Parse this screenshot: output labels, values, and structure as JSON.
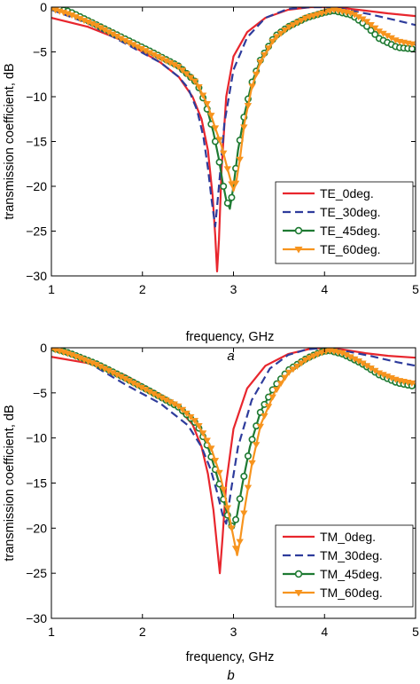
{
  "chart_data": [
    {
      "type": "line",
      "panel_label": "a",
      "xlabel": "frequency, GHz",
      "ylabel": "transmission coefficient, dB",
      "xlim": [
        1,
        5
      ],
      "ylim": [
        -30,
        0
      ],
      "xticks": [
        1,
        2,
        3,
        4,
        5
      ],
      "yticks": [
        0,
        -5,
        -10,
        -15,
        -20,
        -25,
        -30
      ],
      "grid": false,
      "legend_position": "bottom-right",
      "series": [
        {
          "name": "TE_0deg.",
          "color": "#e8262d",
          "style": "solid",
          "marker": "none",
          "x": [
            1,
            1.4,
            1.8,
            2.2,
            2.4,
            2.55,
            2.65,
            2.72,
            2.77,
            2.8,
            2.82,
            2.84,
            2.87,
            2.92,
            3.0,
            3.15,
            3.35,
            3.6,
            3.85,
            4.0,
            4.2,
            4.45,
            4.7,
            5.0
          ],
          "y": [
            -1.2,
            -2.2,
            -3.8,
            -6.2,
            -7.8,
            -10,
            -12.5,
            -16,
            -21,
            -25.5,
            -29.5,
            -26,
            -18,
            -10,
            -5.5,
            -2.8,
            -1.2,
            -0.3,
            0,
            0,
            -0.1,
            -0.4,
            -0.7,
            -1.0
          ]
        },
        {
          "name": "TE_30deg.",
          "color": "#2e3c9c",
          "style": "dashed",
          "marker": "none",
          "x": [
            1,
            1.4,
            1.8,
            2.2,
            2.4,
            2.5,
            2.6,
            2.67,
            2.72,
            2.76,
            2.8,
            2.84,
            2.9,
            3.0,
            3.15,
            3.35,
            3.6,
            3.85,
            4.0,
            4.2,
            4.5,
            4.8,
            5.0
          ],
          "y": [
            -0.3,
            -1.8,
            -4.0,
            -6.2,
            -7.8,
            -9.0,
            -11.5,
            -14.5,
            -18,
            -21.5,
            -24.5,
            -20,
            -13,
            -7,
            -3.4,
            -1.2,
            -0.2,
            0,
            0,
            -0.2,
            -0.8,
            -1.5,
            -2.0
          ]
        },
        {
          "name": "TE_45deg.",
          "color": "#1e7a32",
          "style": "solid",
          "marker": "circle",
          "x": [
            1,
            1.2,
            1.5,
            1.8,
            2.1,
            2.4,
            2.6,
            2.7,
            2.78,
            2.84,
            2.88,
            2.92,
            2.96,
            3.0,
            3.05,
            3.12,
            3.2,
            3.3,
            3.45,
            3.6,
            3.8,
            4.0,
            4.1,
            4.3,
            4.45,
            4.6,
            4.8,
            5.0
          ],
          "y": [
            0,
            -0.5,
            -2.0,
            -3.5,
            -5.0,
            -6.6,
            -8.5,
            -11,
            -14,
            -17,
            -19.5,
            -21.5,
            -22.5,
            -20,
            -16,
            -12,
            -8.5,
            -5.8,
            -3.3,
            -2.2,
            -1.2,
            -0.6,
            -0.4,
            -0.9,
            -2.0,
            -3.5,
            -4.5,
            -4.7
          ]
        },
        {
          "name": "TE_60deg.",
          "color": "#f7941e",
          "style": "solid",
          "marker": "triangle-down",
          "x": [
            1,
            1.2,
            1.5,
            1.8,
            2.1,
            2.4,
            2.6,
            2.72,
            2.8,
            2.87,
            2.92,
            2.96,
            3.0,
            3.03,
            3.07,
            3.12,
            3.2,
            3.3,
            3.45,
            3.6,
            3.8,
            4.0,
            4.1,
            4.3,
            4.45,
            4.6,
            4.8,
            5.0
          ],
          "y": [
            -0.2,
            -0.8,
            -2.1,
            -3.7,
            -5.2,
            -6.7,
            -8.5,
            -11,
            -13.5,
            -15.5,
            -17.5,
            -19,
            -20.5,
            -19.5,
            -17,
            -13,
            -9,
            -6,
            -3.5,
            -2.3,
            -1.2,
            -0.6,
            -0.3,
            -0.7,
            -1.5,
            -2.7,
            -3.8,
            -4.2
          ]
        }
      ]
    },
    {
      "type": "line",
      "panel_label": "b",
      "xlabel": "frequency, GHz",
      "ylabel": "transmission coefficient, dB",
      "xlim": [
        1,
        5
      ],
      "ylim": [
        -30,
        0
      ],
      "xticks": [
        1,
        2,
        3,
        4,
        5
      ],
      "yticks": [
        0,
        -5,
        -10,
        -15,
        -20,
        -25,
        -30
      ],
      "grid": false,
      "legend_position": "bottom-right",
      "series": [
        {
          "name": "TM_0deg.",
          "color": "#e8262d",
          "style": "solid",
          "marker": "none",
          "x": [
            1,
            1.4,
            1.8,
            2.2,
            2.4,
            2.55,
            2.65,
            2.72,
            2.78,
            2.82,
            2.85,
            2.88,
            2.92,
            3.0,
            3.15,
            3.35,
            3.6,
            3.85,
            4.0,
            4.2,
            4.45,
            4.7,
            5.0
          ],
          "y": [
            -1.0,
            -1.7,
            -3.0,
            -5.2,
            -6.8,
            -8.5,
            -11,
            -14,
            -18,
            -22,
            -25,
            -21,
            -15,
            -9,
            -4.5,
            -2.0,
            -0.7,
            -0.1,
            0,
            -0.2,
            -0.6,
            -0.9,
            -1.1
          ]
        },
        {
          "name": "TM_30deg.",
          "color": "#2e3c9c",
          "style": "dashed",
          "marker": "none",
          "x": [
            1,
            1.4,
            1.8,
            2.2,
            2.5,
            2.65,
            2.75,
            2.82,
            2.88,
            2.92,
            2.97,
            3.05,
            3.2,
            3.4,
            3.6,
            3.8,
            4.0,
            4.2,
            4.5,
            4.8,
            5.0
          ],
          "y": [
            0,
            -1.6,
            -4.0,
            -6.2,
            -8.6,
            -11,
            -13.5,
            -16,
            -18.5,
            -19.5,
            -16,
            -11,
            -5.8,
            -2.3,
            -0.8,
            -0.2,
            0,
            -0.3,
            -0.9,
            -1.6,
            -2.0
          ]
        },
        {
          "name": "TM_45deg.",
          "color": "#1e7a32",
          "style": "solid",
          "marker": "circle",
          "x": [
            1,
            1.2,
            1.5,
            1.8,
            2.1,
            2.4,
            2.6,
            2.72,
            2.8,
            2.87,
            2.92,
            2.96,
            3.0,
            3.04,
            3.1,
            3.18,
            3.3,
            3.45,
            3.6,
            3.8,
            3.95,
            4.05,
            4.2,
            4.4,
            4.6,
            4.8,
            5.0
          ],
          "y": [
            0,
            -0.6,
            -1.8,
            -3.3,
            -4.9,
            -6.6,
            -8.5,
            -11,
            -13.5,
            -16,
            -18,
            -19.5,
            -20,
            -18.5,
            -15,
            -11,
            -7,
            -4.3,
            -2.5,
            -1.2,
            -0.5,
            -0.3,
            -0.7,
            -1.7,
            -3.0,
            -3.9,
            -4.3
          ]
        },
        {
          "name": "TM_60deg.",
          "color": "#f7941e",
          "style": "solid",
          "marker": "triangle-down",
          "x": [
            1,
            1.2,
            1.5,
            1.8,
            2.1,
            2.4,
            2.6,
            2.75,
            2.85,
            2.92,
            2.97,
            3.01,
            3.04,
            3.07,
            3.12,
            3.2,
            3.3,
            3.45,
            3.6,
            3.8,
            3.95,
            4.05,
            4.2,
            4.4,
            4.6,
            4.8,
            5.0
          ],
          "y": [
            -0.1,
            -0.7,
            -1.9,
            -3.4,
            -5.0,
            -6.5,
            -8.3,
            -11,
            -14,
            -17,
            -19.5,
            -21.5,
            -23,
            -21.5,
            -18,
            -13,
            -8.5,
            -5.0,
            -2.8,
            -1.3,
            -0.6,
            -0.3,
            -0.6,
            -1.6,
            -2.8,
            -3.6,
            -4.0
          ]
        }
      ]
    }
  ]
}
